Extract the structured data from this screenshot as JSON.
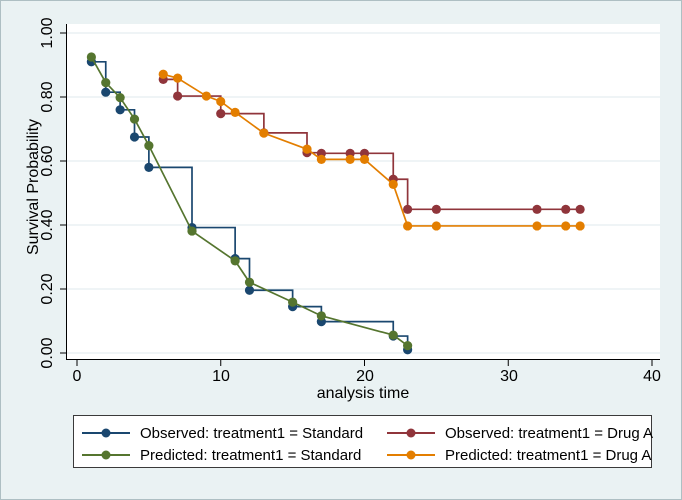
{
  "colors": {
    "background": "#eaf2f3",
    "plot_background": "#ffffff",
    "grid": "#dfeaec",
    "axis": "#000000",
    "text": "#000000",
    "legend_border": "#3a3a3a",
    "navy": "#1a476f",
    "forest_green": "#55752f",
    "maroon": "#90353b",
    "orange": "#e37e00"
  },
  "chart_data": {
    "type": "line",
    "title": "",
    "xlabel": "analysis time",
    "ylabel": "Survival Probability",
    "grid": true,
    "legend_position": "bottom",
    "xlim": [
      0,
      40
    ],
    "ylim": [
      0,
      1
    ],
    "xticks": [
      "0",
      "10",
      "20",
      "30",
      "40"
    ],
    "xtick_values": [
      0,
      10,
      20,
      30,
      40
    ],
    "yticks": [
      "1.00",
      "0.80",
      "0.60",
      "0.40",
      "0.20",
      "0.00"
    ],
    "ytick_values": [
      1.0,
      0.8,
      0.6,
      0.4,
      0.2,
      0.0
    ],
    "series": [
      {
        "name": "Observed: treatment1 = Standard",
        "role": "observed",
        "group": "Standard",
        "color": "#1a476f",
        "line": "step",
        "points": [
          [
            1,
            0.91
          ],
          [
            2,
            0.815
          ],
          [
            3,
            0.76
          ],
          [
            4,
            0.675
          ],
          [
            5,
            0.58
          ],
          [
            8,
            0.392
          ],
          [
            11,
            0.295
          ],
          [
            12,
            0.196
          ],
          [
            15,
            0.145
          ],
          [
            17,
            0.098
          ],
          [
            22,
            0.053
          ],
          [
            23,
            0.01
          ]
        ]
      },
      {
        "name": "Predicted: treatment1 = Standard",
        "role": "predicted",
        "group": "Standard",
        "color": "#55752f",
        "line": "straight",
        "points": [
          [
            1,
            0.925
          ],
          [
            2,
            0.845
          ],
          [
            3,
            0.798
          ],
          [
            4,
            0.731
          ],
          [
            5,
            0.648
          ],
          [
            8,
            0.381
          ],
          [
            11,
            0.288
          ],
          [
            12,
            0.221
          ],
          [
            15,
            0.159
          ],
          [
            17,
            0.116
          ],
          [
            22,
            0.056
          ],
          [
            23,
            0.023
          ]
        ]
      },
      {
        "name": "Observed: treatment1 = Drug A",
        "role": "observed",
        "group": "Drug A",
        "color": "#90353b",
        "line": "step",
        "points": [
          [
            6,
            0.855
          ],
          [
            7,
            0.803
          ],
          [
            10,
            0.748
          ],
          [
            13,
            0.688
          ],
          [
            16,
            0.626
          ],
          [
            17,
            0.624
          ],
          [
            19,
            0.624
          ],
          [
            20,
            0.624
          ],
          [
            22,
            0.543
          ],
          [
            23,
            0.449
          ],
          [
            25,
            0.449
          ],
          [
            32,
            0.449
          ],
          [
            34,
            0.449
          ],
          [
            35,
            0.449
          ]
        ]
      },
      {
        "name": "Predicted: treatment1 = Drug A",
        "role": "predicted",
        "group": "Drug A",
        "color": "#e37e00",
        "line": "straight",
        "points": [
          [
            6,
            0.871
          ],
          [
            7,
            0.859
          ],
          [
            9,
            0.803
          ],
          [
            10,
            0.786
          ],
          [
            11,
            0.752
          ],
          [
            13,
            0.687
          ],
          [
            16,
            0.637
          ],
          [
            17,
            0.605
          ],
          [
            19,
            0.605
          ],
          [
            20,
            0.605
          ],
          [
            22,
            0.527
          ],
          [
            23,
            0.397
          ],
          [
            25,
            0.397
          ],
          [
            32,
            0.397
          ],
          [
            34,
            0.397
          ],
          [
            35,
            0.397
          ]
        ]
      }
    ]
  }
}
